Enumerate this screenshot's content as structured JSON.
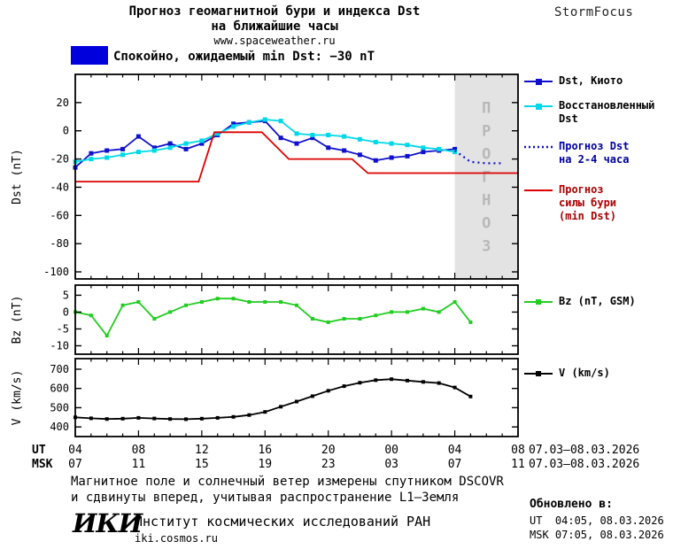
{
  "header": {
    "title_line1": "Прогноз геомагнитной бури и индекса Dst",
    "title_line2": "на ближайшие часы",
    "site": "www.spaceweather.ru",
    "brand": "StormFocus"
  },
  "status": {
    "swatch_color": "#0000dd",
    "text": "Спокойно, ожидаемый min Dst: −30 nT"
  },
  "colors": {
    "kyoto": "#1010cc",
    "reconstructed": "#00d8e8",
    "forecast_dst": "#1010cc",
    "storm": "#dd0000",
    "bz": "#22cc22",
    "v": "#000000",
    "forecast_band": "#e3e3e3",
    "forecast_band_text": "#b8b8b8",
    "forecast_text": "#0000a0",
    "storm_text": "#aa0000"
  },
  "chart_data": [
    {
      "type": "line",
      "ylabel": "Dst (nT)",
      "ylim": [
        -105,
        40
      ],
      "yticks": [
        20,
        0,
        -20,
        -40,
        -60,
        -80,
        -100
      ],
      "xlim": [
        4,
        32
      ],
      "grid": false,
      "legend_position": "right",
      "forecast_band": {
        "x_start": 28,
        "x_end": 32,
        "label": "ПРОГНОЗ"
      },
      "series": [
        {
          "name": "Dst, Киото",
          "legend_lines": [
            "Dst, Киото"
          ],
          "color_key": "kyoto",
          "style": "solid",
          "marker": "square",
          "x": [
            4,
            5,
            6,
            7,
            8,
            9,
            10,
            11,
            12,
            13,
            14,
            15,
            16,
            17,
            18,
            19,
            20,
            21,
            22,
            23,
            24,
            25,
            26,
            27,
            28
          ],
          "values": [
            -26,
            -16,
            -14,
            -13,
            -4,
            -12,
            -9,
            -13,
            -9,
            -3,
            5,
            6,
            7,
            -5,
            -9,
            -5,
            -12,
            -14,
            -17,
            -21,
            -19,
            -18,
            -15,
            -14,
            -13
          ]
        },
        {
          "name": "Восстановленный Dst",
          "legend_lines": [
            "Восстановленный",
            "Dst"
          ],
          "color_key": "reconstructed",
          "style": "solid",
          "marker": "square",
          "x": [
            4,
            5,
            6,
            7,
            8,
            9,
            10,
            11,
            12,
            13,
            14,
            15,
            16,
            17,
            18,
            19,
            20,
            21,
            22,
            23,
            24,
            25,
            26,
            27,
            28
          ],
          "values": [
            -22,
            -20,
            -19,
            -17,
            -15,
            -14,
            -12,
            -9,
            -7,
            -2,
            3,
            6,
            8,
            7,
            -2,
            -3,
            -3,
            -4,
            -6,
            -8,
            -9,
            -10,
            -12,
            -13,
            -15
          ]
        },
        {
          "name": "Прогноз Dst на 2-4 часа",
          "legend_lines": [
            "Прогноз Dst",
            "на 2-4 часа"
          ],
          "color_key": "forecast_dst",
          "style": "dotted",
          "marker": "none",
          "x": [
            28,
            29,
            30,
            31
          ],
          "values": [
            -14,
            -22,
            -23,
            -23
          ]
        },
        {
          "name": "Прогноз силы бури (min Dst)",
          "legend_lines": [
            "Прогноз",
            "силы бури",
            "(min Dst)"
          ],
          "color_key": "storm",
          "style": "solid",
          "marker": "none",
          "x": [
            4,
            11.8,
            12.8,
            15.8,
            17.5,
            21.5,
            22.5,
            32
          ],
          "values": [
            -36,
            -36,
            -1,
            -1,
            -20,
            -20,
            -30,
            -30
          ]
        }
      ]
    },
    {
      "type": "line",
      "ylabel": "Bz (nT)",
      "ylim": [
        -12.5,
        8
      ],
      "yticks": [
        5,
        0,
        -5,
        -10
      ],
      "xlim": [
        4,
        32
      ],
      "grid": false,
      "series": [
        {
          "name": "Bz (nT, GSM)",
          "legend_lines": [
            "Bz (nT, GSM)"
          ],
          "color_key": "bz",
          "style": "solid",
          "marker": "square",
          "x": [
            4,
            5,
            6,
            7,
            8,
            9,
            10,
            11,
            12,
            13,
            14,
            15,
            16,
            17,
            18,
            19,
            20,
            21,
            22,
            23,
            24,
            25,
            26,
            27,
            28,
            29
          ],
          "values": [
            0,
            -1,
            -7,
            2,
            3,
            -2,
            0,
            2,
            3,
            4,
            4,
            3,
            3,
            3,
            2,
            -2,
            -3,
            -2,
            -2,
            -1,
            0,
            0,
            1,
            0,
            3,
            -3
          ]
        }
      ]
    },
    {
      "type": "line",
      "ylabel": "V (km/s)",
      "ylim": [
        350,
        755
      ],
      "yticks": [
        700,
        600,
        500,
        400
      ],
      "xlim": [
        4,
        32
      ],
      "grid": false,
      "series": [
        {
          "name": "V (km/s)",
          "legend_lines": [
            "V (km/s)"
          ],
          "color_key": "v",
          "style": "solid",
          "marker": "square",
          "x": [
            4,
            5,
            6,
            7,
            8,
            9,
            10,
            11,
            12,
            13,
            14,
            15,
            16,
            17,
            18,
            19,
            20,
            21,
            22,
            23,
            24,
            25,
            26,
            27,
            28,
            29
          ],
          "values": [
            450,
            445,
            441,
            443,
            447,
            444,
            441,
            440,
            443,
            447,
            452,
            462,
            478,
            505,
            532,
            560,
            588,
            612,
            630,
            643,
            648,
            641,
            634,
            628,
            605,
            558
          ]
        }
      ]
    }
  ],
  "xaxis": {
    "ut_label": "UT",
    "msk_label": "MSK",
    "tick_hours": [
      4,
      8,
      12,
      16,
      20,
      24,
      28,
      32
    ],
    "ut_ticks": [
      "04",
      "08",
      "12",
      "16",
      "20",
      "00",
      "04",
      "08"
    ],
    "msk_ticks": [
      "07",
      "11",
      "15",
      "19",
      "23",
      "03",
      "07",
      "11"
    ],
    "ut_date_range": "07.03–08.03.2026",
    "msk_date_range": "07.03–08.03.2026"
  },
  "footer": {
    "note_line1": "Магнитное поле и солнечный ветер измерены спутником DSCOVR",
    "note_line2": "и сдвинуты вперед, учитывая распространение L1—Земля",
    "logo_text": "ИКИ",
    "institute": "Институт космических исследований РАН",
    "institute_site": "iki.cosmos.ru",
    "updated_label": "Обновлено в:",
    "updated_ut": "UT  04:05, 08.03.2026",
    "updated_msk": "MSK 07:05, 08.03.2026"
  }
}
